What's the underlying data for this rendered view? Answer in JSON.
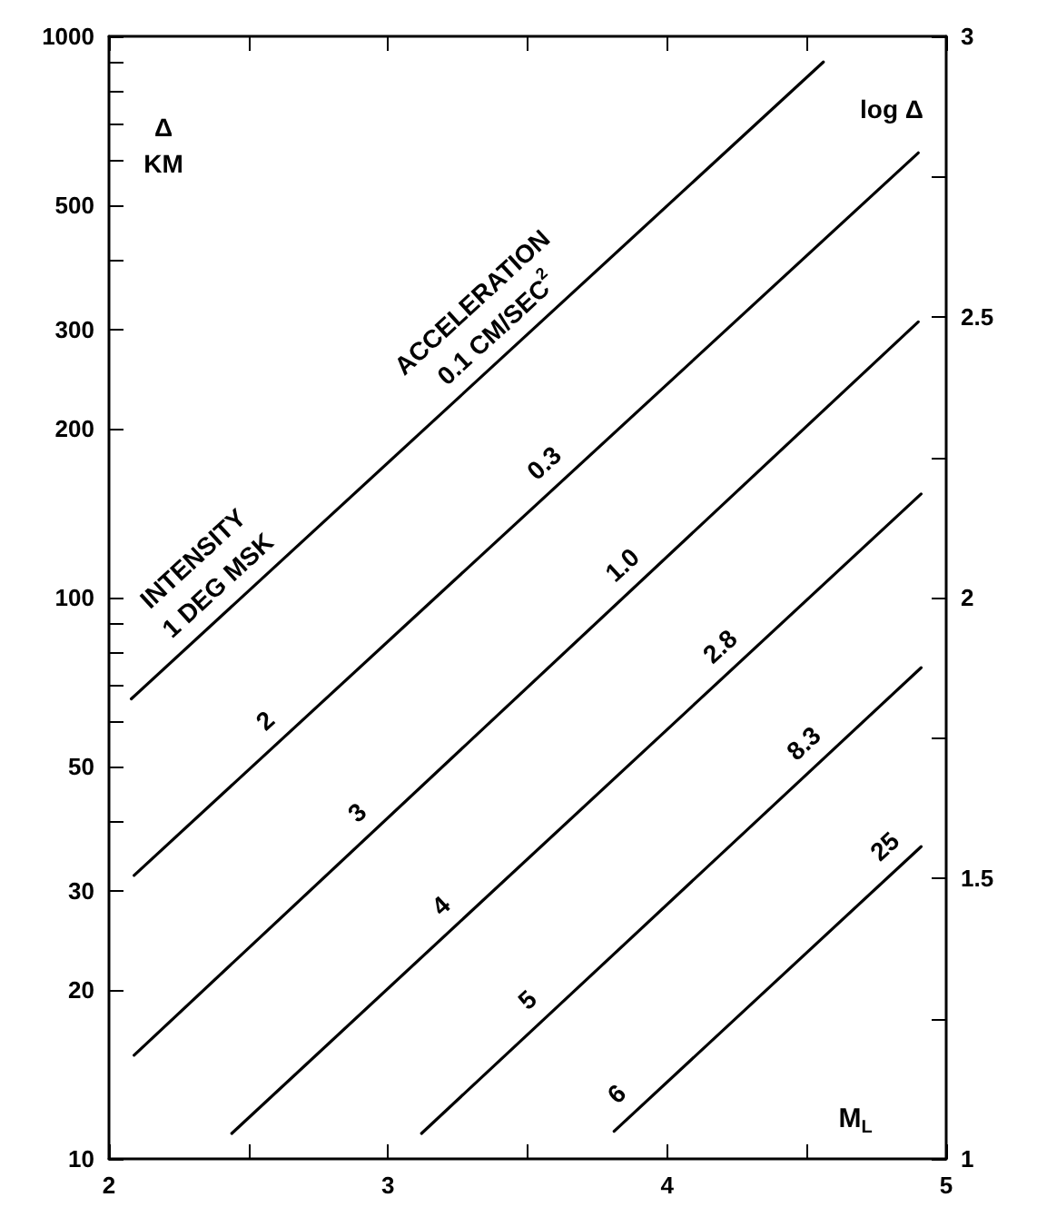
{
  "chart_data": {
    "type": "line",
    "xlabel": "M$_{L}$",
    "ylabel": "Δ\nKM",
    "y2label": "log Δ",
    "log": "y",
    "xlim": [
      2,
      5
    ],
    "ylim": [
      10,
      1000
    ],
    "y2lim": [
      1,
      3
    ],
    "xticks": [
      2,
      {
        "value": 2.5,
        "label": null
      },
      3,
      {
        "value": 3.5,
        "label": null
      },
      4,
      {
        "value": 4.5,
        "label": null
      },
      5
    ],
    "yticks": [
      10,
      20,
      30,
      {
        "value": 40,
        "label": null
      },
      50,
      {
        "value": 60,
        "label": null
      },
      {
        "value": 70,
        "label": null
      },
      {
        "value": 80,
        "label": null
      },
      {
        "value": 90,
        "label": null
      },
      100,
      200,
      300,
      {
        "value": 400,
        "label": null
      },
      500,
      {
        "value": 600,
        "label": null
      },
      {
        "value": 700,
        "label": null
      },
      {
        "value": 800,
        "label": null
      },
      {
        "value": 900,
        "label": null
      },
      1000
    ],
    "y2ticks": [
      1,
      {
        "value": 1.25,
        "label": null
      },
      1.5,
      {
        "value": 1.75,
        "label": null
      },
      2,
      {
        "value": 2.25,
        "label": null
      },
      2.5,
      {
        "value": 2.75,
        "label": null
      },
      3
    ],
    "grid": false,
    "marker": "none",
    "line_style": "solid",
    "series": [
      {
        "color": "#000000",
        "x": [
          2.08,
          4.56
        ],
        "values": [
          66,
          900
        ]
      },
      {
        "color": "#000000",
        "x": [
          2.09,
          4.9
        ],
        "values": [
          32,
          620
        ]
      },
      {
        "color": "#000000",
        "x": [
          2.09,
          4.9
        ],
        "values": [
          15.3,
          310
        ]
      },
      {
        "color": "#000000",
        "x": [
          2.44,
          4.91
        ],
        "values": [
          11.1,
          153
        ]
      },
      {
        "color": "#000000",
        "x": [
          3.12,
          4.91
        ],
        "values": [
          11.1,
          75
        ]
      },
      {
        "color": "#000000",
        "x": [
          3.81,
          4.91
        ],
        "values": [
          11.2,
          36
        ]
      }
    ],
    "annotations": [
      {
        "text": "INTENSITY\n1 DEG MSK",
        "x": 2.45,
        "y": 97.5
      },
      {
        "text": "2",
        "x": 2.62,
        "y": 56
      },
      {
        "text": "3",
        "x": 2.95,
        "y": 38.4
      },
      {
        "text": "4",
        "x": 3.25,
        "y": 26.2
      },
      {
        "text": "5",
        "x": 3.56,
        "y": 17.8
      },
      {
        "text": "6",
        "x": 3.88,
        "y": 12.1
      },
      {
        "text": "ACCELERATION\n0.1 CM/SEC$^{2}$",
        "x": 3.45,
        "y": 279
      },
      {
        "text": "0.3",
        "x": 3.62,
        "y": 161
      },
      {
        "text": "1.0",
        "x": 3.9,
        "y": 106
      },
      {
        "text": "2.8",
        "x": 4.25,
        "y": 75.9
      },
      {
        "text": "8.3",
        "x": 4.55,
        "y": 51
      },
      {
        "text": "25",
        "x": 4.84,
        "y": 33.4
      }
    ]
  }
}
